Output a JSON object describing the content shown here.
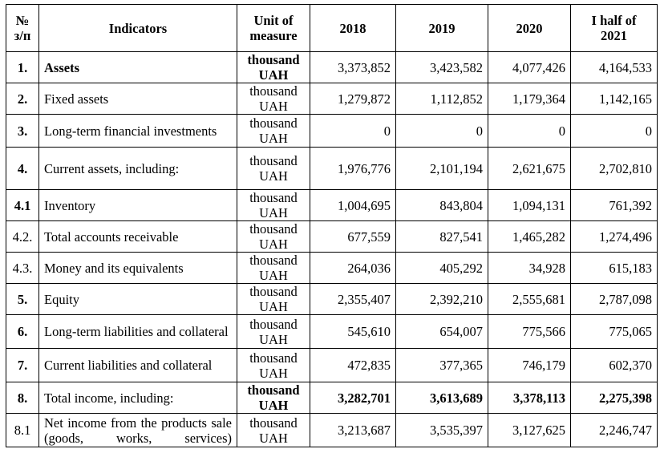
{
  "header": {
    "num": "№\nз/п",
    "indicators": "Indicators",
    "unit": "Unit of\nmeasure",
    "y2018": "2018",
    "y2019": "2019",
    "y2020": "2020",
    "h2021": "I half of\n2021"
  },
  "rows": [
    {
      "num": "1.",
      "indicator": "Assets",
      "unit": "thousand\nUAH",
      "v2018": "3,373,852",
      "v2019": "3,423,582",
      "v2020": "4,077,426",
      "v2021": "4,164,533"
    },
    {
      "num": "2.",
      "indicator": "Fixed assets",
      "unit": "thousand\nUAH",
      "v2018": "1,279,872",
      "v2019": "1,112,852",
      "v2020": "1,179,364",
      "v2021": "1,142,165"
    },
    {
      "num": "3.",
      "indicator": "Long-term financial investments",
      "unit": "thousand\nUAH",
      "v2018": "0",
      "v2019": "0",
      "v2020": "0",
      "v2021": "0"
    },
    {
      "num": "4.",
      "indicator": "Current assets, including:",
      "unit": "thousand\nUAH",
      "v2018": "1,976,776",
      "v2019": "2,101,194",
      "v2020": "2,621,675",
      "v2021": "2,702,810"
    },
    {
      "num": "4.1",
      "indicator": "Inventory",
      "unit": "thousand\nUAH",
      "v2018": "1,004,695",
      "v2019": "843,804",
      "v2020": "1,094,131",
      "v2021": "761,392"
    },
    {
      "num": "4.2.",
      "indicator": "Total accounts receivable",
      "unit": "thousand\nUAH",
      "v2018": "677,559",
      "v2019": "827,541",
      "v2020": "1,465,282",
      "v2021": "1,274,496"
    },
    {
      "num": "4.3.",
      "indicator": "Money and its equivalents",
      "unit": "thousand\nUAH",
      "v2018": "264,036",
      "v2019": "405,292",
      "v2020": "34,928",
      "v2021": "615,183"
    },
    {
      "num": "5.",
      "indicator": "Equity",
      "unit": "thousand\nUAH",
      "v2018": "2,355,407",
      "v2019": "2,392,210",
      "v2020": "2,555,681",
      "v2021": "2,787,098"
    },
    {
      "num": "6.",
      "indicator": "Long-term liabilities and collateral",
      "unit": "thousand\nUAH",
      "v2018": "545,610",
      "v2019": "654,007",
      "v2020": "775,566",
      "v2021": "775,065"
    },
    {
      "num": "7.",
      "indicator": "Current liabilities and collateral",
      "unit": "thousand\nUAH",
      "v2018": "472,835",
      "v2019": "377,365",
      "v2020": "746,179",
      "v2021": "602,370"
    },
    {
      "num": "8.",
      "indicator": "Total income, including:",
      "unit": "thousand\nUAH",
      "v2018": "3,282,701",
      "v2019": "3,613,689",
      "v2020": "3,378,113",
      "v2021": "2,275,398"
    },
    {
      "num": "8.1",
      "indicator": "Net income from the products sale (goods, works, services)",
      "unit": "thousand\nUAH",
      "v2018": "3,213,687",
      "v2019": "3,535,397",
      "v2020": "3,127,625",
      "v2021": "2,246,747"
    }
  ]
}
